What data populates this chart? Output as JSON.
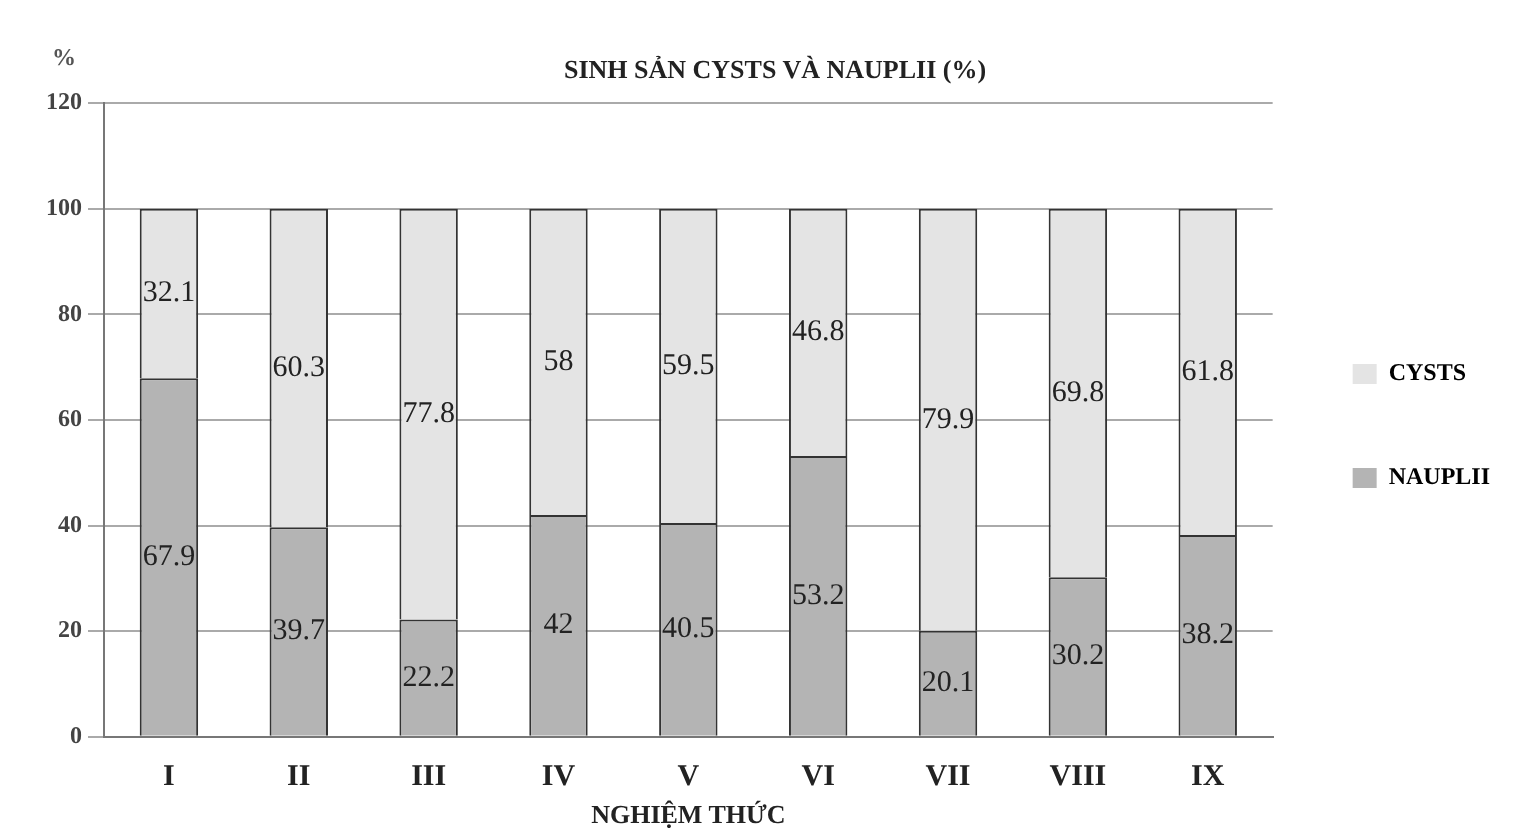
{
  "chart_data": {
    "type": "bar",
    "stacked": true,
    "title": "SINH SẢN CYSTS VÀ NAUPLII (%)",
    "xlabel": "NGHIỆM THỨC",
    "ylabel": "%",
    "categories": [
      "I",
      "II",
      "III",
      "IV",
      "V",
      "VI",
      "VII",
      "VIII",
      "IX"
    ],
    "series": [
      {
        "name": "NAUPLII",
        "color": "#b4b4b4",
        "values": [
          67.9,
          39.7,
          22.2,
          42,
          40.5,
          53.2,
          20.1,
          30.2,
          38.2
        ]
      },
      {
        "name": "CYSTS",
        "color": "#e4e4e4",
        "values": [
          32.1,
          60.3,
          77.8,
          58,
          59.5,
          46.8,
          79.9,
          69.8,
          61.8
        ]
      }
    ],
    "ylim": [
      0,
      120
    ],
    "yticks": [
      0,
      20,
      40,
      60,
      80,
      100,
      120
    ],
    "grid": "y",
    "legend": "right",
    "data_labels": true
  }
}
